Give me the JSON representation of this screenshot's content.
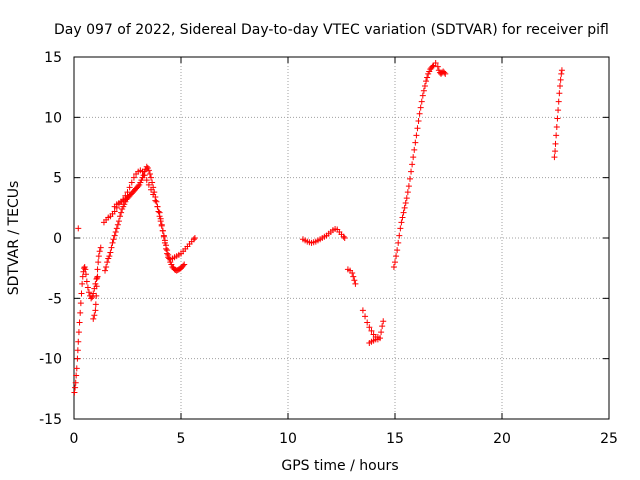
{
  "chart_data": {
    "type": "scatter",
    "title": "Day 097 of 2022, Sidereal Day-to-day VTEC variation (SDTVAR) for receiver pifl",
    "xlabel": "GPS time / hours",
    "ylabel": "SDTVAR / TECUs",
    "xlim": [
      0,
      25
    ],
    "ylim": [
      -15,
      15
    ],
    "xticks": [
      0,
      5,
      10,
      15,
      20,
      25
    ],
    "yticks": [
      -15,
      -10,
      -5,
      0,
      5,
      10,
      15
    ],
    "grid": true,
    "marker": "plus",
    "series": [
      {
        "color": "#ff0000",
        "points": [
          [
            0.02,
            -12.8
          ],
          [
            0.05,
            -12.4
          ],
          [
            0.08,
            -12.0
          ],
          [
            0.1,
            -11.4
          ],
          [
            0.13,
            -10.8
          ],
          [
            0.16,
            -10.0
          ],
          [
            0.18,
            -9.3
          ],
          [
            0.2,
            -8.6
          ],
          [
            0.23,
            -7.8
          ],
          [
            0.26,
            -7.0
          ],
          [
            0.29,
            -6.2
          ],
          [
            0.32,
            -5.4
          ],
          [
            0.35,
            -4.6
          ],
          [
            0.38,
            -3.8
          ],
          [
            0.41,
            -3.2
          ],
          [
            0.44,
            -2.8
          ],
          [
            0.47,
            -2.5
          ],
          [
            0.5,
            -2.4
          ],
          [
            0.53,
            -2.6
          ],
          [
            0.56,
            -3.0
          ],
          [
            0.6,
            -3.6
          ],
          [
            0.65,
            -4.1
          ],
          [
            0.7,
            -4.5
          ],
          [
            0.75,
            -4.8
          ],
          [
            0.8,
            -5.0
          ],
          [
            0.85,
            -4.9
          ],
          [
            0.9,
            -4.6
          ],
          [
            0.95,
            -4.2
          ],
          [
            1.0,
            -3.8
          ],
          [
            1.05,
            -3.4
          ],
          [
            1.1,
            -3.2
          ],
          [
            0.2,
            0.8
          ],
          [
            0.9,
            -6.7
          ],
          [
            0.95,
            -6.4
          ],
          [
            1.0,
            -6.0
          ],
          [
            1.02,
            -5.5
          ],
          [
            1.04,
            -4.8
          ],
          [
            1.06,
            -4.0
          ],
          [
            1.08,
            -3.3
          ],
          [
            1.1,
            -2.6
          ],
          [
            1.13,
            -2.0
          ],
          [
            1.16,
            -1.5
          ],
          [
            1.2,
            -1.1
          ],
          [
            1.25,
            -0.8
          ],
          [
            1.45,
            -2.7
          ],
          [
            1.5,
            -2.4
          ],
          [
            1.55,
            -2.0
          ],
          [
            1.6,
            -1.7
          ],
          [
            1.65,
            -1.5
          ],
          [
            1.7,
            -1.2
          ],
          [
            1.75,
            -0.8
          ],
          [
            1.8,
            -0.4
          ],
          [
            1.85,
            -0.1
          ],
          [
            1.9,
            0.2
          ],
          [
            1.95,
            0.5
          ],
          [
            2.0,
            0.8
          ],
          [
            2.05,
            1.1
          ],
          [
            2.1,
            1.4
          ],
          [
            2.15,
            1.8
          ],
          [
            2.2,
            2.1
          ],
          [
            2.25,
            2.4
          ],
          [
            2.3,
            2.6
          ],
          [
            2.35,
            2.8
          ],
          [
            2.4,
            3.0
          ],
          [
            2.45,
            3.2
          ],
          [
            2.5,
            3.3
          ],
          [
            2.55,
            3.4
          ],
          [
            2.6,
            3.5
          ],
          [
            2.65,
            3.6
          ],
          [
            2.7,
            3.7
          ],
          [
            2.75,
            3.8
          ],
          [
            2.8,
            3.9
          ],
          [
            2.85,
            4.0
          ],
          [
            2.9,
            4.1
          ],
          [
            2.95,
            4.2
          ],
          [
            3.0,
            4.3
          ],
          [
            3.05,
            4.4
          ],
          [
            3.1,
            4.6
          ],
          [
            3.15,
            4.8
          ],
          [
            3.2,
            5.0
          ],
          [
            3.25,
            5.2
          ],
          [
            3.3,
            5.5
          ],
          [
            3.35,
            5.7
          ],
          [
            3.4,
            5.9
          ],
          [
            3.45,
            5.8
          ],
          [
            3.5,
            5.6
          ],
          [
            3.55,
            5.3
          ],
          [
            3.6,
            5.0
          ],
          [
            3.65,
            4.6
          ],
          [
            3.7,
            4.2
          ],
          [
            3.75,
            3.8
          ],
          [
            3.8,
            3.4
          ],
          [
            3.85,
            3.0
          ],
          [
            3.9,
            2.6
          ],
          [
            3.95,
            2.2
          ],
          [
            4.0,
            1.8
          ],
          [
            4.05,
            1.4
          ],
          [
            4.1,
            1.0
          ],
          [
            4.15,
            0.6
          ],
          [
            4.2,
            0.2
          ],
          [
            4.25,
            -0.2
          ],
          [
            4.3,
            -0.6
          ],
          [
            4.35,
            -1.0
          ],
          [
            4.4,
            -1.4
          ],
          [
            4.45,
            -1.7
          ],
          [
            4.5,
            -2.0
          ],
          [
            4.55,
            -2.2
          ],
          [
            4.6,
            -2.4
          ],
          [
            4.65,
            -2.5
          ],
          [
            4.7,
            -2.6
          ],
          [
            4.75,
            -2.65
          ],
          [
            4.8,
            -2.7
          ],
          [
            4.85,
            -2.65
          ],
          [
            4.9,
            -2.6
          ],
          [
            4.95,
            -2.55
          ],
          [
            5.0,
            -2.5
          ],
          [
            5.05,
            -2.4
          ],
          [
            5.1,
            -2.3
          ],
          [
            5.15,
            -2.2
          ],
          [
            1.4,
            1.3
          ],
          [
            1.5,
            1.5
          ],
          [
            1.6,
            1.7
          ],
          [
            1.7,
            1.8
          ],
          [
            1.8,
            2.0
          ],
          [
            1.9,
            2.2
          ],
          [
            2.0,
            2.5
          ],
          [
            2.1,
            2.8
          ],
          [
            2.2,
            3.0
          ],
          [
            2.3,
            3.2
          ],
          [
            2.4,
            3.5
          ],
          [
            2.5,
            3.8
          ],
          [
            2.6,
            4.2
          ],
          [
            2.7,
            4.6
          ],
          [
            2.8,
            5.0
          ],
          [
            2.9,
            5.3
          ],
          [
            3.0,
            5.5
          ],
          [
            3.1,
            5.6
          ],
          [
            3.2,
            5.5
          ],
          [
            3.3,
            5.2
          ],
          [
            3.4,
            4.8
          ],
          [
            3.5,
            4.4
          ],
          [
            3.6,
            4.0
          ],
          [
            3.7,
            3.6
          ],
          [
            3.8,
            3.1
          ],
          [
            3.9,
            2.6
          ],
          [
            4.0,
            2.1
          ],
          [
            4.05,
            1.6
          ],
          [
            4.1,
            1.1
          ],
          [
            4.15,
            0.6
          ],
          [
            4.2,
            0.1
          ],
          [
            4.25,
            -0.4
          ],
          [
            4.3,
            -0.9
          ],
          [
            4.35,
            -1.3
          ],
          [
            4.4,
            -1.6
          ],
          [
            4.5,
            -1.8
          ],
          [
            4.6,
            -1.7
          ],
          [
            4.7,
            -1.6
          ],
          [
            4.8,
            -1.5
          ],
          [
            4.9,
            -1.4
          ],
          [
            5.0,
            -1.3
          ],
          [
            5.1,
            -1.1
          ],
          [
            5.2,
            -0.9
          ],
          [
            5.3,
            -0.7
          ],
          [
            5.4,
            -0.5
          ],
          [
            5.5,
            -0.3
          ],
          [
            5.6,
            -0.1
          ],
          [
            5.65,
            0.0
          ],
          [
            1.9,
            2.6
          ],
          [
            2.0,
            2.8
          ],
          [
            2.1,
            2.9
          ],
          [
            2.2,
            3.0
          ],
          [
            2.3,
            3.1
          ],
          [
            2.4,
            3.3
          ],
          [
            2.5,
            3.5
          ],
          [
            10.7,
            -0.1
          ],
          [
            10.8,
            -0.2
          ],
          [
            10.9,
            -0.3
          ],
          [
            11.0,
            -0.35
          ],
          [
            11.1,
            -0.4
          ],
          [
            11.2,
            -0.35
          ],
          [
            11.3,
            -0.3
          ],
          [
            11.4,
            -0.2
          ],
          [
            11.5,
            -0.1
          ],
          [
            11.6,
            0.0
          ],
          [
            11.7,
            0.1
          ],
          [
            11.8,
            0.2
          ],
          [
            11.9,
            0.35
          ],
          [
            12.0,
            0.5
          ],
          [
            12.1,
            0.65
          ],
          [
            12.2,
            0.75
          ],
          [
            12.3,
            0.7
          ],
          [
            12.4,
            0.5
          ],
          [
            12.5,
            0.3
          ],
          [
            12.6,
            0.1
          ],
          [
            12.65,
            0.0
          ],
          [
            12.8,
            -2.6
          ],
          [
            12.9,
            -2.7
          ],
          [
            13.0,
            -2.9
          ],
          [
            13.05,
            -3.2
          ],
          [
            13.1,
            -3.5
          ],
          [
            13.15,
            -3.8
          ],
          [
            13.5,
            -6.0
          ],
          [
            13.6,
            -6.5
          ],
          [
            13.7,
            -7.0
          ],
          [
            13.8,
            -7.4
          ],
          [
            13.9,
            -7.7
          ],
          [
            14.0,
            -8.0
          ],
          [
            14.1,
            -8.2
          ],
          [
            14.2,
            -8.4
          ],
          [
            14.3,
            -8.3
          ],
          [
            14.35,
            -7.8
          ],
          [
            14.4,
            -7.3
          ],
          [
            14.45,
            -6.9
          ],
          [
            13.8,
            -8.7
          ],
          [
            13.9,
            -8.6
          ],
          [
            14.0,
            -8.5
          ],
          [
            14.1,
            -8.4
          ],
          [
            14.2,
            -8.2
          ],
          [
            14.95,
            -2.4
          ],
          [
            15.0,
            -2.0
          ],
          [
            15.05,
            -1.5
          ],
          [
            15.1,
            -1.0
          ],
          [
            15.15,
            -0.4
          ],
          [
            15.2,
            0.2
          ],
          [
            15.25,
            0.8
          ],
          [
            15.3,
            1.3
          ],
          [
            15.35,
            1.7
          ],
          [
            15.4,
            2.1
          ],
          [
            15.45,
            2.5
          ],
          [
            15.5,
            2.9
          ],
          [
            15.55,
            3.3
          ],
          [
            15.6,
            3.8
          ],
          [
            15.65,
            4.3
          ],
          [
            15.7,
            4.9
          ],
          [
            15.75,
            5.5
          ],
          [
            15.8,
            6.1
          ],
          [
            15.85,
            6.7
          ],
          [
            15.9,
            7.3
          ],
          [
            15.95,
            7.9
          ],
          [
            16.0,
            8.5
          ],
          [
            16.05,
            9.1
          ],
          [
            16.1,
            9.7
          ],
          [
            16.15,
            10.3
          ],
          [
            16.2,
            10.8
          ],
          [
            16.25,
            11.3
          ],
          [
            16.3,
            11.8
          ],
          [
            16.35,
            12.2
          ],
          [
            16.4,
            12.6
          ],
          [
            16.45,
            13.0
          ],
          [
            16.5,
            13.3
          ],
          [
            16.55,
            13.6
          ],
          [
            16.6,
            13.8
          ],
          [
            16.65,
            14.0
          ],
          [
            16.7,
            14.1
          ],
          [
            16.75,
            14.2
          ],
          [
            16.8,
            14.3
          ],
          [
            16.9,
            14.5
          ],
          [
            17.0,
            14.2
          ],
          [
            17.05,
            13.9
          ],
          [
            17.1,
            13.7
          ],
          [
            17.15,
            13.6
          ],
          [
            17.2,
            13.7
          ],
          [
            17.25,
            13.8
          ],
          [
            17.3,
            13.7
          ],
          [
            17.35,
            13.6
          ],
          [
            22.45,
            6.7
          ],
          [
            22.48,
            7.2
          ],
          [
            22.5,
            7.8
          ],
          [
            22.53,
            8.5
          ],
          [
            22.56,
            9.2
          ],
          [
            22.59,
            9.9
          ],
          [
            22.62,
            10.6
          ],
          [
            22.65,
            11.3
          ],
          [
            22.68,
            12.0
          ],
          [
            22.71,
            12.6
          ],
          [
            22.74,
            13.1
          ],
          [
            22.77,
            13.6
          ],
          [
            22.8,
            13.9
          ]
        ]
      }
    ]
  }
}
